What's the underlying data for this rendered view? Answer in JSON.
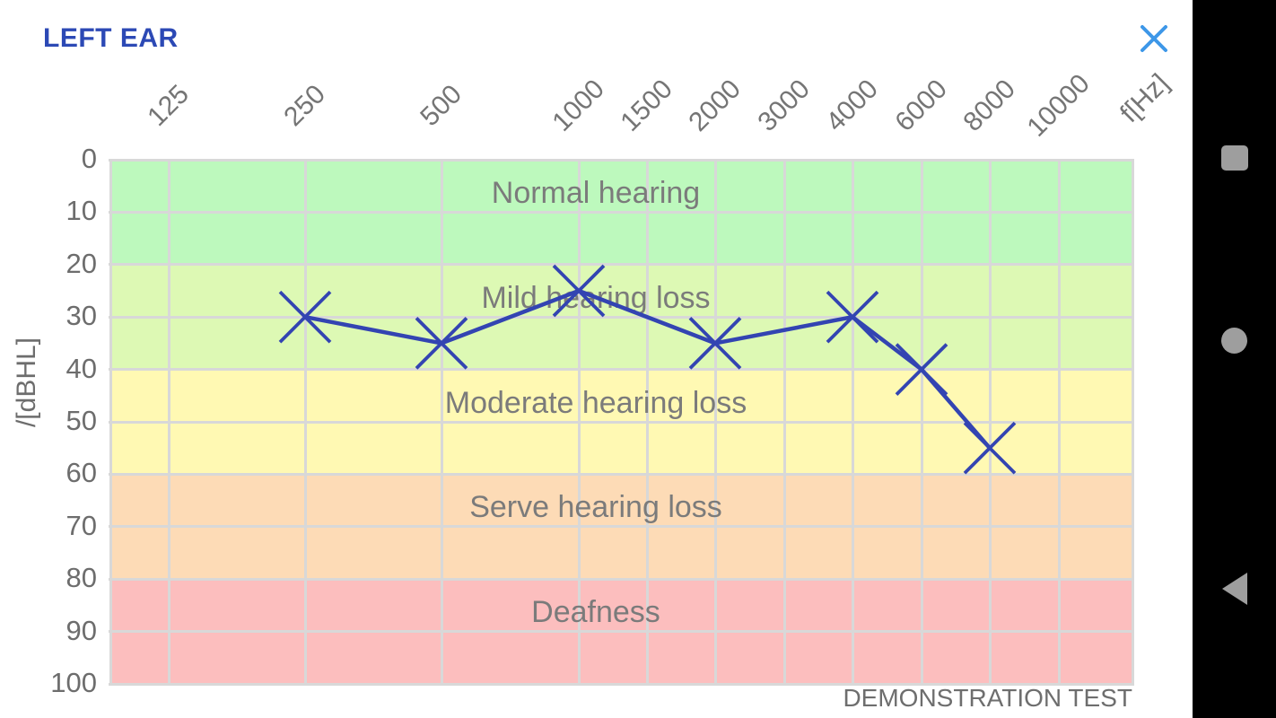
{
  "header": {
    "title": "LEFT EAR"
  },
  "chart_data": {
    "type": "line",
    "title": "",
    "x_axis_unit_label": "f[Hz]",
    "y_axis_label": "/[dBHL]",
    "x_tick_labels": [
      "125",
      "250",
      "500",
      "1000",
      "1500",
      "2000",
      "3000",
      "4000",
      "6000",
      "8000",
      "10000"
    ],
    "y_ticks": [
      0,
      10,
      20,
      30,
      40,
      50,
      60,
      70,
      80,
      90,
      100
    ],
    "ylim": [
      0,
      100
    ],
    "y_inverted": true,
    "grid": true,
    "zones": [
      {
        "label": "Normal hearing",
        "from": 0,
        "to": 20,
        "color": "#bdf9bd"
      },
      {
        "label": "Mild hearing loss",
        "from": 20,
        "to": 40,
        "color": "#ddf9b4"
      },
      {
        "label": "Moderate hearing loss",
        "from": 40,
        "to": 60,
        "color": "#fff9b3"
      },
      {
        "label": "Serve hearing loss",
        "from": 60,
        "to": 80,
        "color": "#fddbb6"
      },
      {
        "label": "Deafness",
        "from": 80,
        "to": 100,
        "color": "#fcbebe"
      }
    ],
    "series": [
      {
        "name": "left-ear-thresholds",
        "marker": "x",
        "color": "#3344b2",
        "points": [
          {
            "f": 250,
            "db": 30
          },
          {
            "f": 500,
            "db": 35
          },
          {
            "f": 1000,
            "db": 25
          },
          {
            "f": 2000,
            "db": 35
          },
          {
            "f": 4000,
            "db": 30
          },
          {
            "f": 6000,
            "db": 40
          },
          {
            "f": 8000,
            "db": 55
          }
        ]
      }
    ],
    "annotation": "DEMONSTRATION TEST"
  },
  "colors": {
    "title_blue": "#2c49b5",
    "close_blue": "#3d97e8",
    "grid": "#d8d8d8",
    "axis_text": "#757575",
    "nav_icon": "#9e9e9e",
    "nav_bg": "#000000"
  },
  "nav_bar": {
    "icons": [
      {
        "name": "recents-square-icon"
      },
      {
        "name": "home-circle-icon"
      },
      {
        "name": "back-triangle-icon"
      }
    ]
  }
}
